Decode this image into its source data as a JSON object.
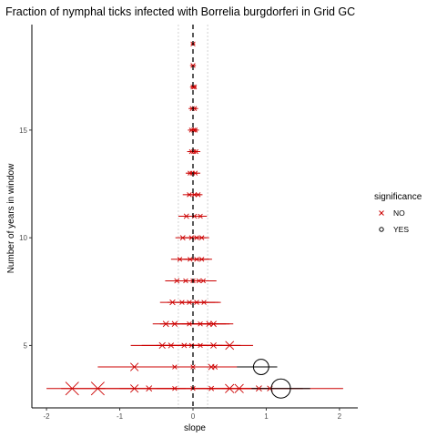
{
  "chart_data": {
    "type": "scatter",
    "title": "Fraction of nymphal ticks infected with Borrelia burgdorferi in Grid GC",
    "xlabel": "slope",
    "ylabel": "Number of years in window",
    "xlim": [
      -2.2,
      2.25
    ],
    "ylim": [
      2.1,
      19.9
    ],
    "x_ticks": [
      -2,
      -1,
      0,
      1,
      2
    ],
    "x_tick_labels": [
      "-2",
      "-1",
      "0",
      "1",
      "2"
    ],
    "y_ticks": [
      5,
      10,
      15
    ],
    "y_tick_labels": [
      "5",
      "10",
      "15"
    ],
    "reference_lines": {
      "zero": 0,
      "dotted": [
        -0.2,
        0.2
      ]
    },
    "grid": false,
    "legend": {
      "title": "significance",
      "position": "right",
      "entries": [
        {
          "label": "NO",
          "marker": "x",
          "color": "#cc0000"
        },
        {
          "label": "YES",
          "marker": "circle",
          "color": "#000000"
        }
      ]
    },
    "colors": {
      "NO": "#cc0000",
      "YES": "#000000"
    },
    "series": [
      {
        "name": "NO",
        "points": [
          {
            "y": 19,
            "x": 0,
            "lo": -0.03,
            "hi": 0.03,
            "s": 1
          },
          {
            "y": 18,
            "x": 0,
            "lo": -0.04,
            "hi": 0.04,
            "s": 1
          },
          {
            "y": 17,
            "x": 0,
            "lo": -0.04,
            "hi": 0.04,
            "s": 1
          },
          {
            "y": 17,
            "x": 0.02,
            "lo": -0.03,
            "hi": 0.05,
            "s": 1
          },
          {
            "y": 16,
            "x": -0.01,
            "lo": -0.06,
            "hi": 0.05,
            "s": 1
          },
          {
            "y": 16,
            "x": 0.02,
            "lo": -0.04,
            "hi": 0.07,
            "s": 1
          },
          {
            "y": 15,
            "x": -0.02,
            "lo": -0.07,
            "hi": 0.05,
            "s": 1
          },
          {
            "y": 15,
            "x": 0.01,
            "lo": -0.05,
            "hi": 0.06,
            "s": 1
          },
          {
            "y": 15,
            "x": 0.03,
            "lo": -0.03,
            "hi": 0.08,
            "s": 1
          },
          {
            "y": 14,
            "x": -0.02,
            "lo": -0.08,
            "hi": 0.05,
            "s": 1
          },
          {
            "y": 14,
            "x": 0.01,
            "lo": -0.06,
            "hi": 0.07,
            "s": 1
          },
          {
            "y": 14,
            "x": 0.04,
            "lo": -0.03,
            "hi": 0.1,
            "s": 1
          },
          {
            "y": 13,
            "x": -0.04,
            "lo": -0.1,
            "hi": 0.04,
            "s": 1
          },
          {
            "y": 13,
            "x": -0.01,
            "lo": -0.08,
            "hi": 0.07,
            "s": 1
          },
          {
            "y": 13,
            "x": 0.03,
            "lo": -0.05,
            "hi": 0.1,
            "s": 1
          },
          {
            "y": 12,
            "x": -0.05,
            "lo": -0.14,
            "hi": 0.05,
            "s": 1
          },
          {
            "y": 12,
            "x": 0.02,
            "lo": -0.08,
            "hi": 0.11,
            "s": 1
          },
          {
            "y": 12,
            "x": 0.07,
            "lo": -0.03,
            "hi": 0.13,
            "s": 1
          },
          {
            "y": 11,
            "x": -0.09,
            "lo": -0.2,
            "hi": 0.04,
            "s": 1.1
          },
          {
            "y": 11,
            "x": 0.02,
            "lo": -0.1,
            "hi": 0.14,
            "s": 1
          },
          {
            "y": 11,
            "x": 0.1,
            "lo": -0.04,
            "hi": 0.19,
            "s": 1
          },
          {
            "y": 10,
            "x": -0.14,
            "lo": -0.24,
            "hi": 0.04,
            "s": 1.1
          },
          {
            "y": 10,
            "x": -0.02,
            "lo": -0.16,
            "hi": 0.12,
            "s": 1
          },
          {
            "y": 10,
            "x": 0.05,
            "lo": -0.12,
            "hi": 0.18,
            "s": 1
          },
          {
            "y": 10,
            "x": 0.12,
            "lo": -0.05,
            "hi": 0.22,
            "s": 1
          },
          {
            "y": 9,
            "x": -0.18,
            "lo": -0.3,
            "hi": 0.06,
            "s": 1
          },
          {
            "y": 9,
            "x": -0.04,
            "lo": -0.2,
            "hi": 0.15,
            "s": 1
          },
          {
            "y": 9,
            "x": 0.05,
            "lo": -0.12,
            "hi": 0.22,
            "s": 1
          },
          {
            "y": 9,
            "x": 0.12,
            "lo": -0.05,
            "hi": 0.26,
            "s": 1
          },
          {
            "y": 8,
            "x": -0.22,
            "lo": -0.38,
            "hi": 0.1,
            "s": 1.1
          },
          {
            "y": 8,
            "x": -0.1,
            "lo": -0.28,
            "hi": 0.18,
            "s": 1
          },
          {
            "y": 8,
            "x": 0,
            "lo": -0.2,
            "hi": 0.25,
            "s": 1
          },
          {
            "y": 8,
            "x": 0.08,
            "lo": -0.12,
            "hi": 0.3,
            "s": 1
          },
          {
            "y": 8,
            "x": 0.14,
            "lo": -0.05,
            "hi": 0.32,
            "s": 1
          },
          {
            "y": 7,
            "x": -0.28,
            "lo": -0.45,
            "hi": 0.15,
            "s": 1.2
          },
          {
            "y": 7,
            "x": -0.15,
            "lo": -0.35,
            "hi": 0.2,
            "s": 1
          },
          {
            "y": 7,
            "x": -0.05,
            "lo": -0.25,
            "hi": 0.3,
            "s": 1
          },
          {
            "y": 7,
            "x": 0.05,
            "lo": -0.15,
            "hi": 0.35,
            "s": 1
          },
          {
            "y": 7,
            "x": 0.15,
            "lo": -0.05,
            "hi": 0.38,
            "s": 1
          },
          {
            "y": 6,
            "x": -0.37,
            "lo": -0.55,
            "hi": 0.1,
            "s": 1.3
          },
          {
            "y": 6,
            "x": -0.25,
            "lo": -0.45,
            "hi": 0.2,
            "s": 1.2
          },
          {
            "y": 6,
            "x": -0.05,
            "lo": -0.3,
            "hi": 0.35,
            "s": 1
          },
          {
            "y": 6,
            "x": 0.1,
            "lo": -0.15,
            "hi": 0.45,
            "s": 1
          },
          {
            "y": 6,
            "x": 0.22,
            "lo": -0.05,
            "hi": 0.5,
            "s": 1.2
          },
          {
            "y": 6,
            "x": 0.28,
            "lo": -0.02,
            "hi": 0.55,
            "s": 1.3
          },
          {
            "y": 5,
            "x": -0.42,
            "lo": -0.85,
            "hi": 0.1,
            "s": 1.4
          },
          {
            "y": 5,
            "x": -0.3,
            "lo": -0.7,
            "hi": 0.2,
            "s": 1.2
          },
          {
            "y": 5,
            "x": -0.12,
            "lo": -0.5,
            "hi": 0.3,
            "s": 1.1
          },
          {
            "y": 5,
            "x": -0.02,
            "lo": -0.4,
            "hi": 0.4,
            "s": 1
          },
          {
            "y": 5,
            "x": 0.1,
            "lo": -0.2,
            "hi": 0.5,
            "s": 1
          },
          {
            "y": 5,
            "x": 0.28,
            "lo": -0.1,
            "hi": 0.65,
            "s": 1.3
          },
          {
            "y": 5,
            "x": 0.5,
            "lo": 0.1,
            "hi": 0.82,
            "s": 1.9
          },
          {
            "y": 4,
            "x": -0.8,
            "lo": -1.3,
            "hi": -0.2,
            "s": 1.8
          },
          {
            "y": 4,
            "x": -0.25,
            "lo": -0.9,
            "hi": 0.3,
            "s": 1
          },
          {
            "y": 4,
            "x": 0,
            "lo": -0.5,
            "hi": 0.5,
            "s": 1
          },
          {
            "y": 4,
            "x": 0.25,
            "lo": -0.3,
            "hi": 0.7,
            "s": 1.3
          },
          {
            "y": 4,
            "x": 0.3,
            "lo": -0.2,
            "hi": 0.8,
            "s": 1.1
          },
          {
            "y": 3,
            "x": -1.65,
            "lo": -2.0,
            "hi": -1.2,
            "s": 3.0
          },
          {
            "y": 3,
            "x": -1.3,
            "lo": -1.8,
            "hi": -0.8,
            "s": 3.0
          },
          {
            "y": 3,
            "x": -0.8,
            "lo": -1.3,
            "hi": -0.3,
            "s": 1.8
          },
          {
            "y": 3,
            "x": -0.6,
            "lo": -1.0,
            "hi": -0.1,
            "s": 1.3
          },
          {
            "y": 3,
            "x": -0.25,
            "lo": -0.8,
            "hi": 0.3,
            "s": 1
          },
          {
            "y": 3,
            "x": 0,
            "lo": -0.5,
            "hi": 0.5,
            "s": 1
          },
          {
            "y": 3,
            "x": 0.25,
            "lo": -0.3,
            "hi": 0.8,
            "s": 1.1
          },
          {
            "y": 3,
            "x": 0.5,
            "lo": 0.0,
            "hi": 1.0,
            "s": 2.0
          },
          {
            "y": 3,
            "x": 0.63,
            "lo": 0.2,
            "hi": 1.1,
            "s": 2.0
          },
          {
            "y": 3,
            "x": 0.9,
            "lo": 0.4,
            "hi": 1.5,
            "s": 1.3
          },
          {
            "y": 3,
            "x": 1.05,
            "lo": 0.6,
            "hi": 2.05,
            "s": 1.2
          }
        ]
      },
      {
        "name": "YES",
        "points": [
          {
            "y": 4,
            "x": 0.93,
            "lo": 0.6,
            "hi": 1.15,
            "s": 2.4
          },
          {
            "y": 3,
            "x": 1.2,
            "lo": 0.8,
            "hi": 1.6,
            "s": 3.0
          }
        ]
      }
    ]
  }
}
